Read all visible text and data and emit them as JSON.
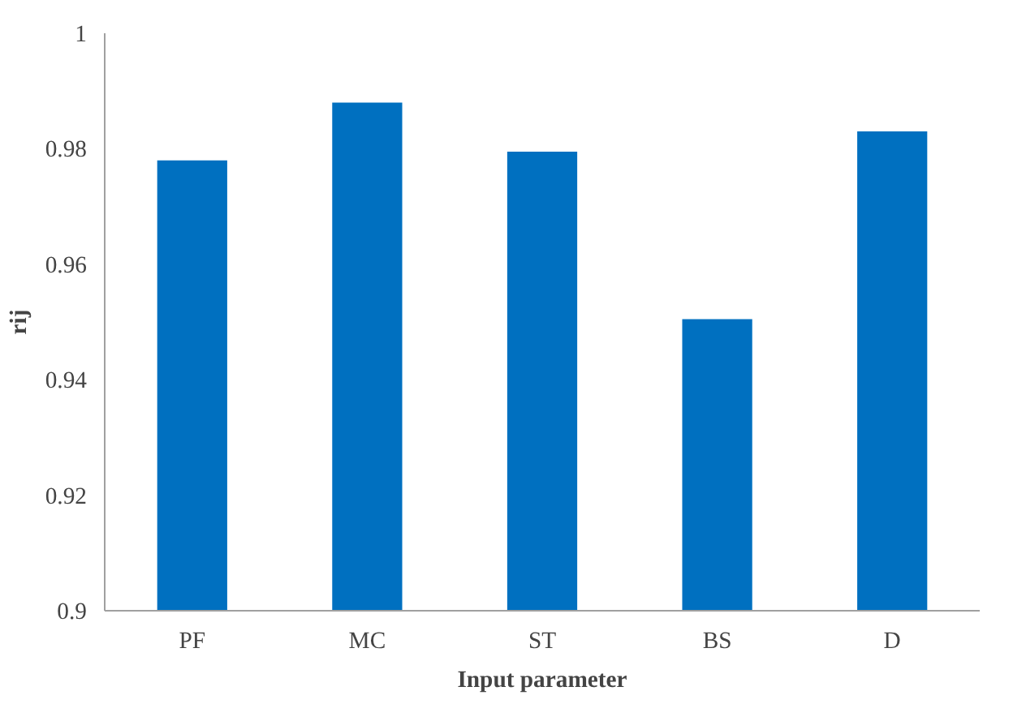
{
  "chart_data": {
    "type": "bar",
    "xlabel": "Input parameter",
    "ylabel": "rij",
    "categories": [
      "PF",
      "MC",
      "ST",
      "BS",
      "D"
    ],
    "values": [
      0.978,
      0.988,
      0.9795,
      0.9505,
      0.983
    ],
    "color": "#0070c0",
    "ylim": [
      0.9,
      1
    ],
    "yticks": [
      0.9,
      0.92,
      0.94,
      0.96,
      0.98,
      1
    ],
    "grid": false
  }
}
